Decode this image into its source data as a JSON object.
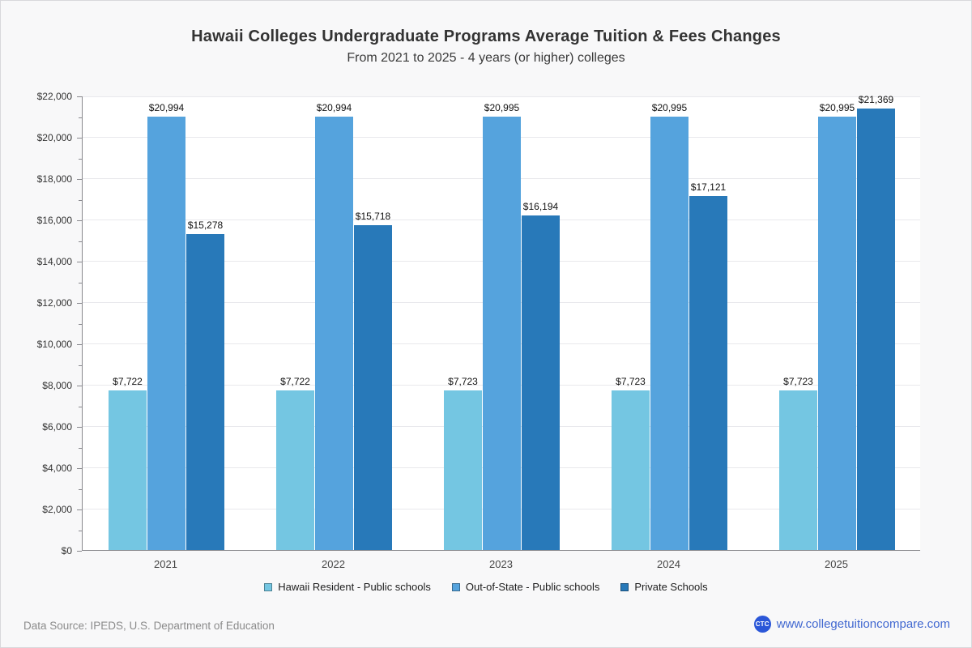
{
  "chart_data": {
    "type": "bar",
    "title": "Hawaii Colleges Undergraduate Programs Average Tuition & Fees Changes",
    "subtitle": "From 2021 to 2025 - 4 years (or higher) colleges",
    "categories": [
      "2021",
      "2022",
      "2023",
      "2024",
      "2025"
    ],
    "series": [
      {
        "name": "Hawaii Resident - Public schools",
        "color": "#74c6e2",
        "values": [
          7722,
          7722,
          7723,
          7723,
          7723
        ],
        "labels": [
          "$7,722",
          "$7,722",
          "$7,723",
          "$7,723",
          "$7,723"
        ]
      },
      {
        "name": "Out-of-State - Public schools",
        "color": "#55a3dd",
        "values": [
          20994,
          20994,
          20995,
          20995,
          20995
        ],
        "labels": [
          "$20,994",
          "$20,994",
          "$20,995",
          "$20,995",
          "$20,995"
        ]
      },
      {
        "name": "Private Schools",
        "color": "#2879b9",
        "values": [
          15278,
          15718,
          16194,
          17121,
          21369
        ],
        "labels": [
          "$15,278",
          "$15,718",
          "$16,194",
          "$17,121",
          "$21,369"
        ]
      }
    ],
    "xlabel": "",
    "ylabel": "",
    "ylim": [
      0,
      22000
    ],
    "ytick_step": 2000,
    "ytick_labels": [
      "$0",
      "$2,000",
      "$4,000",
      "$6,000",
      "$8,000",
      "$10,000",
      "$12,000",
      "$14,000",
      "$16,000",
      "$18,000",
      "$20,000",
      "$22,000"
    ],
    "grid": true,
    "legend_position": "bottom"
  },
  "footer": {
    "data_source": "Data Source: IPEDS, U.S. Department of Education",
    "website": "www.collegetuitioncompare.com",
    "logo_text": "CTC"
  }
}
